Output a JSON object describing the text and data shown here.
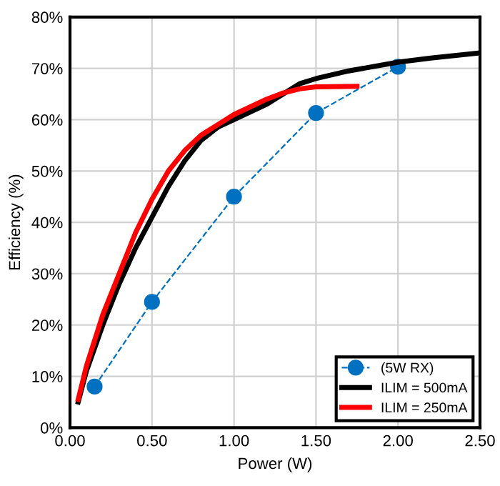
{
  "chart_data": {
    "type": "line",
    "xlabel": "Power (W)",
    "ylabel": "Efficiency (%)",
    "xlim": [
      0,
      2.5
    ],
    "ylim": [
      0,
      80
    ],
    "xticks": [
      {
        "value": 0,
        "label": "0.00"
      },
      {
        "value": 0.5,
        "label": "0.50"
      },
      {
        "value": 1,
        "label": "1.00"
      },
      {
        "value": 1.5,
        "label": "1.50"
      },
      {
        "value": 2,
        "label": "2.00"
      },
      {
        "value": 2.5,
        "label": "2.50"
      }
    ],
    "yticks": [
      {
        "value": 0,
        "label": "0%"
      },
      {
        "value": 10,
        "label": "10%"
      },
      {
        "value": 20,
        "label": "20%"
      },
      {
        "value": 30,
        "label": "30%"
      },
      {
        "value": 40,
        "label": "40%"
      },
      {
        "value": 50,
        "label": "50%"
      },
      {
        "value": 60,
        "label": "60%"
      },
      {
        "value": 70,
        "label": "70%"
      },
      {
        "value": 80,
        "label": "80%"
      }
    ],
    "grid": true,
    "legend": "bottom right",
    "series": [
      {
        "name": "(5W RX)",
        "color": "#0070c0",
        "marker": "circle",
        "line_style": "dashed",
        "x": [
          0.15,
          0.5,
          1.0,
          1.5,
          2.0
        ],
        "values": [
          8,
          24.5,
          45,
          61.3,
          70.3
        ]
      },
      {
        "name": "ILIM = 500mA",
        "color": "#000000",
        "marker": "none",
        "line_style": "solid",
        "x": [
          0.05,
          0.1,
          0.2,
          0.3,
          0.4,
          0.5,
          0.6,
          0.7,
          0.8,
          0.9,
          1.0,
          1.1,
          1.2,
          1.3,
          1.4,
          1.5,
          1.7,
          2.0,
          2.2,
          2.5
        ],
        "values": [
          5,
          11,
          20,
          28,
          35,
          41,
          47,
          52,
          56,
          58.5,
          60,
          61.5,
          63,
          65,
          67,
          68,
          69.5,
          71.2,
          72,
          73
        ]
      },
      {
        "name": "ILIM = 250mA",
        "color": "#ff0000",
        "marker": "none",
        "line_style": "solid",
        "x": [
          0.05,
          0.1,
          0.2,
          0.3,
          0.4,
          0.5,
          0.6,
          0.7,
          0.8,
          0.9,
          1.0,
          1.1,
          1.2,
          1.3,
          1.4,
          1.5,
          1.75
        ],
        "values": [
          5.5,
          12,
          22,
          30,
          38,
          44.5,
          50,
          54,
          57,
          59,
          61,
          62.5,
          64,
          65.2,
          66,
          66.4,
          66.5
        ]
      }
    ]
  }
}
